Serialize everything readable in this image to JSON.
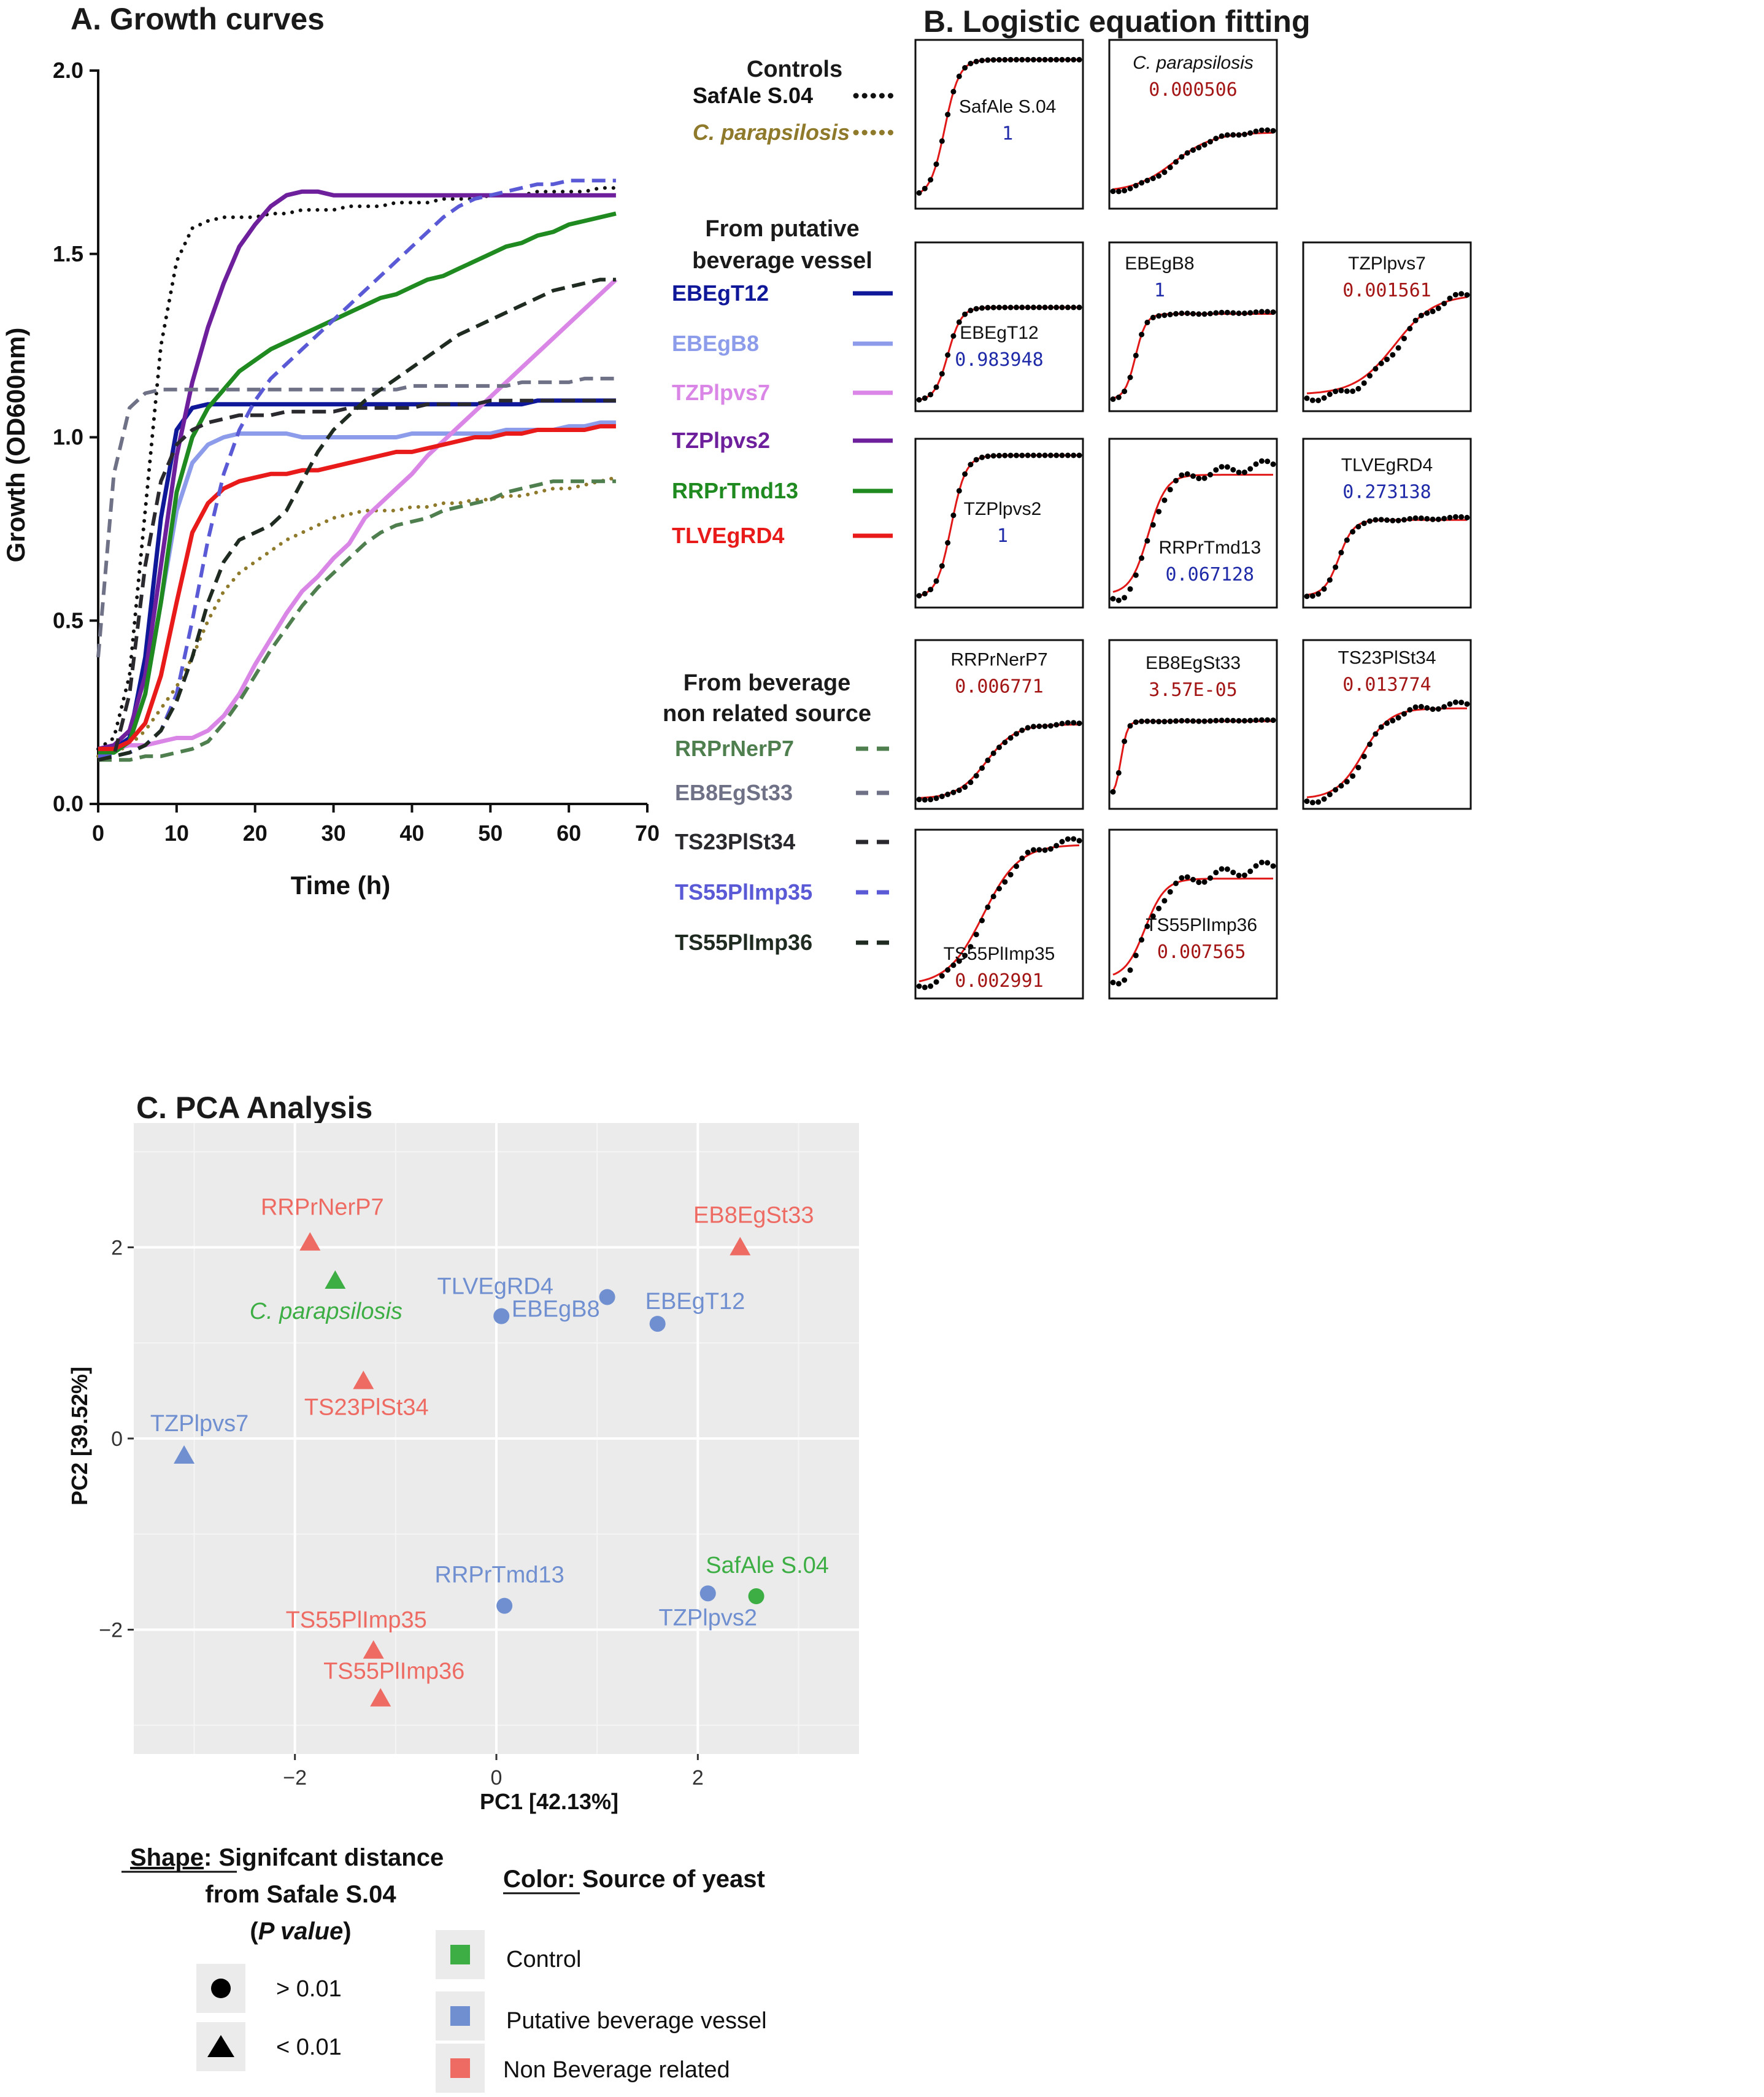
{
  "panel_a": {
    "title": "A. Growth curves",
    "controls_heading": "Controls",
    "vessel_heading": [
      "From putative",
      "beverage vessel"
    ],
    "nonrelated_heading": [
      "From beverage",
      "non related source"
    ]
  },
  "panel_b": {
    "title": "B. Logistic equation fitting"
  },
  "panel_c": {
    "title": "C. PCA Analysis"
  },
  "legend": {
    "shape_title_1": "Shape",
    "shape_title_1b": ": Signifcant distance",
    "shape_title_2": "from Safale S.04",
    "shape_title_3a": "(",
    "shape_title_3b": "P value",
    "shape_title_3c": ")",
    "shape_items": [
      "> 0.01",
      "< 0.01"
    ],
    "color_title_1": "Color:",
    "color_title_2": " Source of yeast",
    "color_items": [
      "Control",
      "Putative beverage vessel",
      "Non Beverage related"
    ]
  },
  "colors": {
    "control_green": "#3cae44",
    "vessel_blue": "#6f8fd0",
    "nonbev_red": "#ee6b63",
    "fit_red": "#e01818",
    "pval_blue": "#1f2aa8",
    "pval_red": "#a31515"
  },
  "chart_data": [
    {
      "type": "line",
      "xlabel": "Time (h)",
      "ylabel": "Growth (OD600nm)",
      "xlim": [
        0,
        70
      ],
      "ylim": [
        0,
        2.0
      ],
      "xticks": [
        "0",
        "10",
        "20",
        "30",
        "40",
        "50",
        "60",
        "70"
      ],
      "yticks": [
        "0.0",
        "0.5",
        "1.0",
        "1.5",
        "2.0"
      ],
      "x": [
        0,
        2,
        4,
        6,
        8,
        10,
        12,
        14,
        16,
        18,
        20,
        22,
        24,
        26,
        28,
        30,
        32,
        34,
        36,
        38,
        40,
        42,
        44,
        46,
        48,
        50,
        52,
        54,
        56,
        58,
        60,
        62,
        64,
        66
      ],
      "series": [
        {
          "name": "SafAle S.04",
          "group": "Controls",
          "color": "#111111",
          "style": "dotted",
          "values": [
            0.15,
            0.18,
            0.35,
            0.8,
            1.25,
            1.48,
            1.57,
            1.59,
            1.6,
            1.6,
            1.6,
            1.61,
            1.61,
            1.62,
            1.62,
            1.62,
            1.63,
            1.63,
            1.63,
            1.64,
            1.64,
            1.64,
            1.65,
            1.65,
            1.65,
            1.66,
            1.66,
            1.66,
            1.67,
            1.67,
            1.67,
            1.67,
            1.68,
            1.68
          ]
        },
        {
          "name": "C. parapsilosis",
          "group": "Controls",
          "color": "#8f7a2c",
          "style": "dotted",
          "values": [
            0.13,
            0.14,
            0.16,
            0.2,
            0.26,
            0.32,
            0.4,
            0.5,
            0.58,
            0.63,
            0.66,
            0.69,
            0.72,
            0.74,
            0.76,
            0.78,
            0.79,
            0.8,
            0.8,
            0.8,
            0.81,
            0.81,
            0.82,
            0.82,
            0.83,
            0.83,
            0.84,
            0.84,
            0.85,
            0.86,
            0.86,
            0.87,
            0.88,
            0.89
          ]
        },
        {
          "name": "EBEgT12",
          "group": "From putative beverage vessel",
          "color": "#10189a",
          "style": "solid",
          "values": [
            0.15,
            0.15,
            0.18,
            0.4,
            0.78,
            1.02,
            1.08,
            1.09,
            1.09,
            1.09,
            1.09,
            1.09,
            1.09,
            1.09,
            1.09,
            1.09,
            1.09,
            1.09,
            1.09,
            1.09,
            1.09,
            1.09,
            1.09,
            1.09,
            1.09,
            1.09,
            1.09,
            1.09,
            1.1,
            1.1,
            1.1,
            1.1,
            1.1,
            1.1
          ]
        },
        {
          "name": "EBEgB8",
          "group": "From putative beverage vessel",
          "color": "#8c9cea",
          "style": "solid",
          "values": [
            0.14,
            0.14,
            0.17,
            0.3,
            0.55,
            0.8,
            0.93,
            0.98,
            1.0,
            1.01,
            1.01,
            1.01,
            1.01,
            1.0,
            1.0,
            1.0,
            1.0,
            1.0,
            1.0,
            1.0,
            1.01,
            1.01,
            1.01,
            1.01,
            1.01,
            1.01,
            1.02,
            1.02,
            1.02,
            1.02,
            1.03,
            1.03,
            1.04,
            1.04
          ]
        },
        {
          "name": "TZPlpvs7",
          "group": "From putative beverage vessel",
          "color": "#da86e6",
          "style": "solid",
          "values": [
            0.15,
            0.15,
            0.16,
            0.16,
            0.17,
            0.18,
            0.18,
            0.2,
            0.24,
            0.3,
            0.38,
            0.45,
            0.52,
            0.58,
            0.62,
            0.67,
            0.71,
            0.78,
            0.82,
            0.86,
            0.9,
            0.95,
            0.99,
            1.03,
            1.07,
            1.11,
            1.15,
            1.19,
            1.23,
            1.27,
            1.31,
            1.35,
            1.39,
            1.43
          ]
        },
        {
          "name": "TZPlpvs2",
          "group": "From putative beverage vessel",
          "color": "#6e1f9c",
          "style": "solid",
          "values": [
            0.15,
            0.16,
            0.2,
            0.35,
            0.65,
            0.95,
            1.15,
            1.3,
            1.42,
            1.52,
            1.58,
            1.63,
            1.66,
            1.67,
            1.67,
            1.66,
            1.66,
            1.66,
            1.66,
            1.66,
            1.66,
            1.66,
            1.66,
            1.66,
            1.66,
            1.66,
            1.66,
            1.66,
            1.66,
            1.66,
            1.66,
            1.66,
            1.66,
            1.66
          ]
        },
        {
          "name": "RRPrTmd13",
          "group": "From putative beverage vessel",
          "color": "#1f8a1f",
          "style": "solid",
          "values": [
            0.14,
            0.14,
            0.17,
            0.3,
            0.55,
            0.85,
            1.0,
            1.08,
            1.13,
            1.18,
            1.21,
            1.24,
            1.26,
            1.28,
            1.3,
            1.32,
            1.34,
            1.36,
            1.38,
            1.39,
            1.41,
            1.43,
            1.44,
            1.46,
            1.48,
            1.5,
            1.52,
            1.53,
            1.55,
            1.56,
            1.58,
            1.59,
            1.6,
            1.61
          ]
        },
        {
          "name": "TLVEgRD4",
          "group": "From putative beverage vessel",
          "color": "#e81a1a",
          "style": "solid",
          "values": [
            0.15,
            0.15,
            0.17,
            0.22,
            0.35,
            0.55,
            0.74,
            0.82,
            0.86,
            0.88,
            0.89,
            0.9,
            0.9,
            0.91,
            0.91,
            0.92,
            0.93,
            0.94,
            0.95,
            0.96,
            0.96,
            0.97,
            0.98,
            0.99,
            1.0,
            1.0,
            1.01,
            1.01,
            1.02,
            1.02,
            1.02,
            1.02,
            1.03,
            1.03
          ]
        },
        {
          "name": "RRPrNerP7",
          "group": "From beverage non related source",
          "color": "#4f7f4f",
          "style": "dashed",
          "values": [
            0.12,
            0.12,
            0.12,
            0.13,
            0.13,
            0.14,
            0.15,
            0.17,
            0.22,
            0.28,
            0.35,
            0.42,
            0.48,
            0.54,
            0.59,
            0.63,
            0.67,
            0.71,
            0.74,
            0.76,
            0.77,
            0.78,
            0.8,
            0.81,
            0.82,
            0.83,
            0.85,
            0.86,
            0.87,
            0.88,
            0.88,
            0.88,
            0.88,
            0.88
          ]
        },
        {
          "name": "EB8EgSt33",
          "group": "From beverage non related source",
          "color": "#6f7187",
          "style": "dashed",
          "values": [
            0.4,
            0.9,
            1.08,
            1.12,
            1.13,
            1.13,
            1.13,
            1.13,
            1.13,
            1.13,
            1.13,
            1.13,
            1.13,
            1.13,
            1.13,
            1.13,
            1.13,
            1.13,
            1.13,
            1.13,
            1.14,
            1.14,
            1.14,
            1.14,
            1.14,
            1.14,
            1.14,
            1.15,
            1.15,
            1.15,
            1.15,
            1.16,
            1.16,
            1.16
          ]
        },
        {
          "name": "TS23PlSt34",
          "group": "From beverage non related source",
          "color": "#2a2a2e",
          "style": "dashed",
          "values": [
            0.12,
            0.13,
            0.3,
            0.65,
            0.88,
            0.98,
            1.02,
            1.04,
            1.05,
            1.06,
            1.06,
            1.06,
            1.07,
            1.07,
            1.07,
            1.07,
            1.08,
            1.08,
            1.08,
            1.08,
            1.08,
            1.09,
            1.09,
            1.09,
            1.09,
            1.1,
            1.1,
            1.1,
            1.1,
            1.1,
            1.1,
            1.1,
            1.1,
            1.1
          ]
        },
        {
          "name": "TS55PlImp35",
          "group": "From beverage non related source",
          "color": "#5a5ad6",
          "style": "dashed",
          "values": [
            0.13,
            0.13,
            0.14,
            0.16,
            0.2,
            0.3,
            0.5,
            0.72,
            0.9,
            1.02,
            1.1,
            1.16,
            1.2,
            1.24,
            1.28,
            1.32,
            1.36,
            1.4,
            1.44,
            1.48,
            1.52,
            1.56,
            1.6,
            1.63,
            1.65,
            1.66,
            1.67,
            1.68,
            1.69,
            1.69,
            1.7,
            1.7,
            1.7,
            1.7
          ]
        },
        {
          "name": "TS55PlImp36",
          "group": "From beverage non related source",
          "color": "#1f2b21",
          "style": "dashed",
          "values": [
            0.12,
            0.13,
            0.14,
            0.16,
            0.2,
            0.28,
            0.4,
            0.55,
            0.66,
            0.72,
            0.74,
            0.76,
            0.8,
            0.88,
            0.96,
            1.02,
            1.06,
            1.1,
            1.13,
            1.16,
            1.19,
            1.22,
            1.25,
            1.28,
            1.3,
            1.32,
            1.34,
            1.36,
            1.38,
            1.4,
            1.41,
            1.42,
            1.43,
            1.43
          ]
        }
      ]
    },
    {
      "type": "line",
      "title": "B. Logistic equation fitting",
      "panels": [
        {
          "name": "SafAle S.04",
          "value": "1",
          "value_color": "#1f2aa8"
        },
        {
          "name": "C. parapsilosis",
          "value": "0.000506",
          "value_color": "#a31515",
          "italic": true
        },
        {
          "name": "EBEgT12",
          "value": "0.983948",
          "value_color": "#1f2aa8"
        },
        {
          "name": "EBEgB8",
          "value": "1",
          "value_color": "#1f2aa8"
        },
        {
          "name": "TZPlpvs7",
          "value": "0.001561",
          "value_color": "#a31515"
        },
        {
          "name": "TZPlpvs2",
          "value": "1",
          "value_color": "#1f2aa8"
        },
        {
          "name": "RRPrTmd13",
          "value": "0.067128",
          "value_color": "#1f2aa8"
        },
        {
          "name": "TLVEgRD4",
          "value": "0.273138",
          "value_color": "#1f2aa8"
        },
        {
          "name": "RRPrNerP7",
          "value": "0.006771",
          "value_color": "#a31515"
        },
        {
          "name": "EB8EgSt33",
          "value": "3.57E-05",
          "value_color": "#a31515"
        },
        {
          "name": "TS23PlSt34",
          "value": "0.013774",
          "value_color": "#a31515"
        },
        {
          "name": "TS55PlImp35",
          "value": "0.002991",
          "value_color": "#a31515"
        },
        {
          "name": "TS55PlImp36",
          "value": "0.007565",
          "value_color": "#a31515"
        }
      ]
    },
    {
      "type": "scatter",
      "title": "C. PCA Analysis",
      "xlabel": "PC1 [42.13%]",
      "ylabel": "PC2 [39.52%]",
      "xlim": [
        -3.6,
        3.6
      ],
      "ylim": [
        -3.3,
        3.3
      ],
      "xticks": [
        -2,
        0,
        2
      ],
      "yticks": [
        -2,
        0,
        2
      ],
      "tick_labels": {
        "-2": "−2",
        "0": "0",
        "2": "2"
      },
      "grid": true,
      "points": [
        {
          "label": "RRPrNerP7",
          "x": -1.85,
          "y": 2.05,
          "group": "Non Beverage related",
          "shape": "triangle"
        },
        {
          "label": "C. parapsilosis",
          "x": -1.6,
          "y": 1.65,
          "group": "Control",
          "shape": "triangle"
        },
        {
          "label": "EB8EgSt33",
          "x": 2.42,
          "y": 2.0,
          "group": "Non Beverage related",
          "shape": "triangle"
        },
        {
          "label": "TLVEgRD4",
          "x": 0.05,
          "y": 1.28,
          "group": "Putative beverage vessel",
          "shape": "circle"
        },
        {
          "label": "EBEgB8",
          "x": 1.1,
          "y": 1.48,
          "group": "Putative beverage vessel",
          "shape": "circle"
        },
        {
          "label": "EBEgT12",
          "x": 1.6,
          "y": 1.2,
          "group": "Putative beverage vessel",
          "shape": "circle"
        },
        {
          "label": "TS23PlSt34",
          "x": -1.32,
          "y": 0.6,
          "group": "Non Beverage related",
          "shape": "triangle"
        },
        {
          "label": "TZPlpvs7",
          "x": -3.1,
          "y": -0.18,
          "group": "Putative beverage vessel",
          "shape": "triangle"
        },
        {
          "label": "RRPrTmd13",
          "x": 0.08,
          "y": -1.75,
          "group": "Putative beverage vessel",
          "shape": "circle"
        },
        {
          "label": "TZPlpvs2",
          "x": 2.1,
          "y": -1.62,
          "group": "Putative beverage vessel",
          "shape": "circle"
        },
        {
          "label": "SafAle S.04",
          "x": 2.58,
          "y": -1.65,
          "group": "Control",
          "shape": "circle"
        },
        {
          "label": "TS55PlImp35",
          "x": -1.22,
          "y": -2.22,
          "group": "Non Beverage related",
          "shape": "triangle"
        },
        {
          "label": "TS55PlImp36",
          "x": -1.15,
          "y": -2.72,
          "group": "Non Beverage related",
          "shape": "triangle"
        }
      ]
    }
  ]
}
